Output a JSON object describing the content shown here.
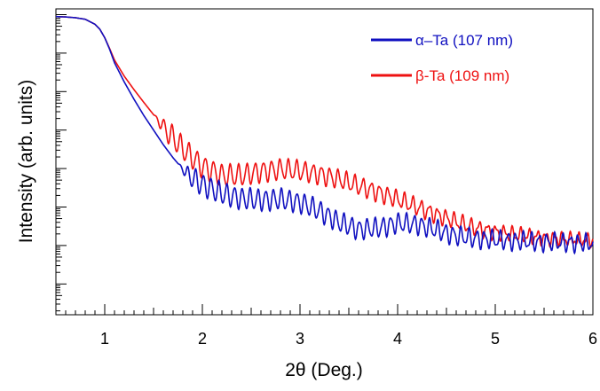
{
  "chart_data": {
    "type": "line",
    "xlabel": "2θ (Deg.)",
    "ylabel": "Intensity (arb. units)",
    "xlim": [
      0.5,
      6
    ],
    "ylim": [
      -7.8,
      0.15
    ],
    "y_scale": "log",
    "x_tick_labels": [
      "1",
      "2",
      "3",
      "4",
      "5",
      "6"
    ],
    "x_ticks": [
      1,
      2,
      3,
      4,
      5,
      6
    ],
    "y_tick_labels_shown": false,
    "grid": false,
    "legend_position": "top-right",
    "series": [
      {
        "name": "α–Ta (107 nm)",
        "color": "#1010c0",
        "x": [
          0.5,
          0.6,
          0.7,
          0.8,
          0.9,
          0.95,
          1.0,
          1.05,
          1.1,
          1.2,
          1.3,
          1.4,
          1.5,
          1.6,
          1.7,
          1.8,
          1.85,
          1.9,
          2.0,
          2.2,
          2.4,
          2.6,
          2.8,
          3.0,
          3.2,
          3.4,
          3.6,
          3.8,
          4.0,
          4.2,
          4.4,
          4.6,
          4.8,
          5.0,
          5.2,
          5.4,
          5.6,
          5.8,
          6.0
        ],
        "y": [
          -0.05,
          -0.06,
          -0.08,
          -0.12,
          -0.25,
          -0.38,
          -0.6,
          -0.9,
          -1.25,
          -1.75,
          -2.2,
          -2.62,
          -3.0,
          -3.38,
          -3.72,
          -4.02,
          -4.15,
          -4.25,
          -4.42,
          -4.65,
          -4.78,
          -4.82,
          -4.8,
          -4.88,
          -5.1,
          -5.4,
          -5.58,
          -5.55,
          -5.42,
          -5.45,
          -5.6,
          -5.75,
          -5.82,
          -5.85,
          -5.88,
          -5.9,
          -5.92,
          -5.93,
          -5.95
        ],
        "oscillation": {
          "start": 1.75,
          "period": 0.08,
          "amp_start": 0.28,
          "amp_end": 0.18
        }
      },
      {
        "name": "β-Ta (109 nm)",
        "color": "#ee1111",
        "x": [
          0.5,
          0.6,
          0.7,
          0.8,
          0.9,
          0.95,
          1.0,
          1.05,
          1.1,
          1.2,
          1.3,
          1.4,
          1.5,
          1.6,
          1.7,
          1.8,
          1.9,
          2.0,
          2.2,
          2.4,
          2.6,
          2.8,
          3.0,
          3.2,
          3.4,
          3.6,
          3.8,
          4.0,
          4.2,
          4.4,
          4.6,
          4.8,
          5.0,
          5.2,
          5.4,
          5.6,
          5.8,
          6.0
        ],
        "y": [
          -0.05,
          -0.06,
          -0.08,
          -0.12,
          -0.25,
          -0.38,
          -0.6,
          -0.88,
          -1.18,
          -1.6,
          -1.95,
          -2.28,
          -2.6,
          -2.92,
          -3.2,
          -3.48,
          -3.72,
          -3.95,
          -4.18,
          -4.18,
          -4.08,
          -4.02,
          -4.06,
          -4.15,
          -4.28,
          -4.45,
          -4.62,
          -4.8,
          -5.0,
          -5.2,
          -5.38,
          -5.55,
          -5.65,
          -5.72,
          -5.78,
          -5.82,
          -5.85,
          -5.87
        ],
        "oscillation": {
          "start": 1.5,
          "period": 0.085,
          "amp_start": 0.3,
          "amp_end": 0.12
        }
      }
    ]
  }
}
